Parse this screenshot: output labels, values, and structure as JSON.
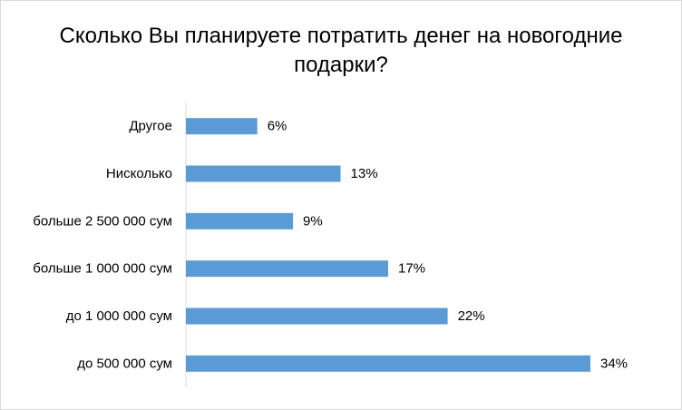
{
  "chart_data": {
    "type": "bar",
    "orientation": "horizontal",
    "title": "Сколько Вы планируете потратить денег на новогодние подарки?",
    "categories": [
      "Другое",
      "Нисколько",
      "больше 2 500 000 сум",
      "больше 1 000 000 сум",
      "до 1 000 000 сум",
      "до 500 000 сум"
    ],
    "values": [
      6,
      13,
      9,
      17,
      22,
      34
    ],
    "value_labels": [
      "6%",
      "13%",
      "9%",
      "17%",
      "22%",
      "34%"
    ],
    "unit": "%",
    "xlim": [
      0,
      34
    ],
    "grid": false,
    "legend": "none",
    "bar_color": "#5b9bd5",
    "axis_color": "#d9d9d9"
  }
}
